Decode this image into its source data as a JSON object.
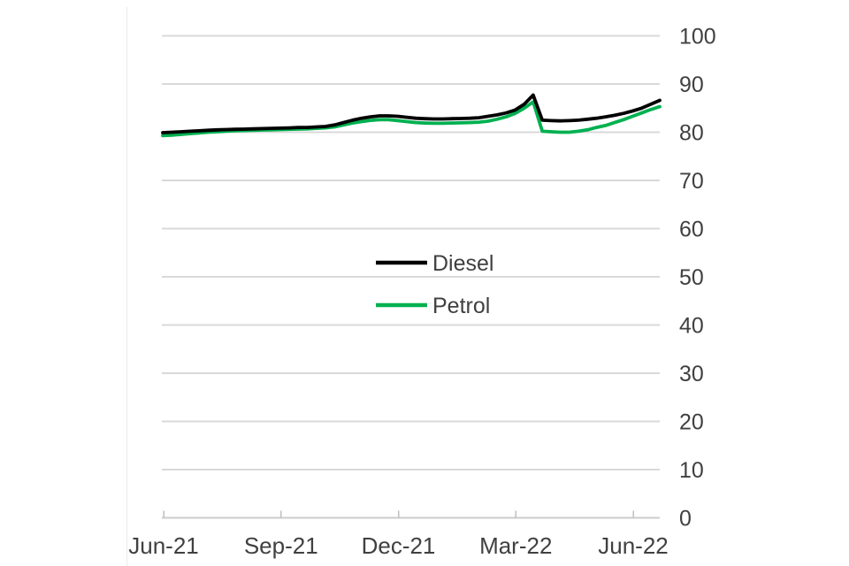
{
  "chart_data": {
    "type": "line",
    "title": "",
    "x_axis": {
      "tick_labels": [
        "Jun-21",
        "Sep-21",
        "Dec-21",
        "Mar-22",
        "Jun-22"
      ],
      "granularity": "weekly points spanning Jun-21 to just past Jun-22"
    },
    "y_axis": {
      "ticks": [
        0,
        10,
        20,
        30,
        40,
        50,
        60,
        70,
        80,
        90,
        100
      ],
      "range": [
        0,
        100
      ],
      "side": "right"
    },
    "grid": "horizontal",
    "legend": {
      "position": "inside-center",
      "entries": [
        "Diesel",
        "Petrol"
      ]
    },
    "series": [
      {
        "name": "Diesel",
        "color": "#000000",
        "values": [
          79.9,
          80.0,
          80.1,
          80.2,
          80.3,
          80.4,
          80.5,
          80.55,
          80.6,
          80.65,
          80.7,
          80.75,
          80.8,
          80.85,
          80.9,
          81.0,
          81.0,
          81.1,
          81.2,
          81.5,
          82.0,
          82.5,
          82.9,
          83.2,
          83.4,
          83.4,
          83.3,
          83.1,
          82.9,
          82.8,
          82.75,
          82.75,
          82.8,
          82.85,
          82.9,
          83.0,
          83.3,
          83.6,
          84.0,
          84.6,
          85.8,
          87.7,
          82.5,
          82.4,
          82.35,
          82.4,
          82.5,
          82.7,
          82.9,
          83.2,
          83.5,
          83.9,
          84.4,
          85.0,
          85.8,
          86.6
        ]
      },
      {
        "name": "Petrol",
        "color": "#00b050",
        "values": [
          79.3,
          79.4,
          79.55,
          79.7,
          79.85,
          80.0,
          80.1,
          80.2,
          80.3,
          80.35,
          80.4,
          80.45,
          80.5,
          80.55,
          80.6,
          80.65,
          80.7,
          80.8,
          80.9,
          81.1,
          81.5,
          81.9,
          82.2,
          82.45,
          82.6,
          82.6,
          82.4,
          82.2,
          82.0,
          81.9,
          81.85,
          81.85,
          81.9,
          81.95,
          82.0,
          82.1,
          82.3,
          82.7,
          83.2,
          83.9,
          85.0,
          86.3,
          80.2,
          80.1,
          80.0,
          80.0,
          80.2,
          80.5,
          81.0,
          81.4,
          82.0,
          82.6,
          83.3,
          84.0,
          84.7,
          85.3
        ]
      }
    ]
  },
  "colors": {
    "diesel": "#000000",
    "petrol": "#00b050",
    "gridline": "#d9d9d9",
    "axis_line": "#cccccc",
    "tick_mark": "#bfbfbf",
    "label_text": "#404040",
    "background": "#ffffff",
    "frame_line": "#efefef"
  }
}
